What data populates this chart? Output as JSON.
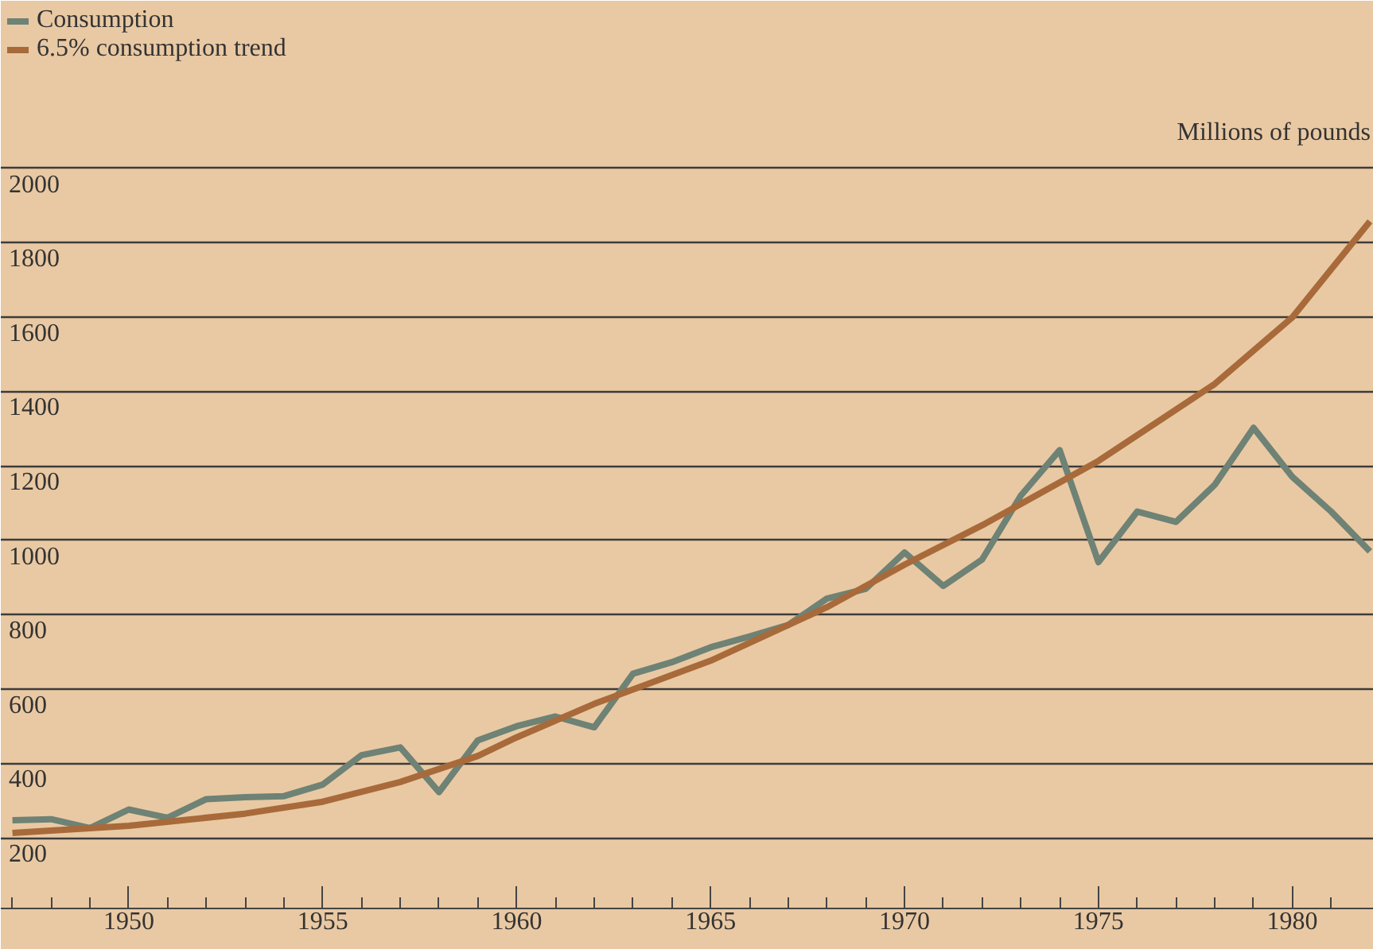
{
  "chart_data": {
    "type": "line",
    "ylabel": "Millions of pounds",
    "xlim": [
      1946.7,
      1982.1
    ],
    "ylim": [
      10,
      2450
    ],
    "xticks": [
      {
        "value": 1947,
        "label": null
      },
      {
        "value": 1948,
        "label": null
      },
      {
        "value": 1949,
        "label": null
      },
      1950,
      {
        "value": 1951,
        "label": null
      },
      {
        "value": 1952,
        "label": null
      },
      {
        "value": 1953,
        "label": null
      },
      {
        "value": 1954,
        "label": null
      },
      1955,
      {
        "value": 1956,
        "label": null
      },
      {
        "value": 1957,
        "label": null
      },
      {
        "value": 1958,
        "label": null
      },
      {
        "value": 1959,
        "label": null
      },
      1960,
      {
        "value": 1961,
        "label": null
      },
      {
        "value": 1962,
        "label": null
      },
      {
        "value": 1963,
        "label": null
      },
      {
        "value": 1964,
        "label": null
      },
      1965,
      {
        "value": 1966,
        "label": null
      },
      {
        "value": 1967,
        "label": null
      },
      {
        "value": 1968,
        "label": null
      },
      {
        "value": 1969,
        "label": null
      },
      1970,
      {
        "value": 1971,
        "label": null
      },
      {
        "value": 1972,
        "label": null
      },
      {
        "value": 1973,
        "label": null
      },
      {
        "value": 1974,
        "label": null
      },
      1975,
      {
        "value": 1976,
        "label": null
      },
      {
        "value": 1977,
        "label": null
      },
      {
        "value": 1978,
        "label": null
      },
      {
        "value": 1979,
        "label": null
      },
      1980,
      {
        "value": 1981,
        "label": null
      }
    ],
    "yticks": [
      200,
      400,
      600,
      800,
      1000,
      1200,
      1400,
      1600,
      1800,
      2000
    ],
    "grid": "y",
    "legend": "top left",
    "line_style": "solid",
    "marker": "none",
    "series": [
      {
        "name": "Consumption",
        "color": "#6e8275",
        "x": [
          1947,
          1948,
          1949,
          1950,
          1951,
          1952,
          1953,
          1954,
          1955,
          1956,
          1957,
          1958,
          1959,
          1960,
          1961,
          1962,
          1963,
          1964,
          1965,
          1966,
          1967,
          1968,
          1969,
          1970,
          1971,
          1972,
          1973,
          1974,
          1975,
          1976,
          1977,
          1978,
          1979,
          1980,
          1981,
          1982
        ],
        "values": [
          247,
          250,
          226,
          276,
          254,
          304,
          309,
          312,
          343,
          422,
          443,
          323,
          462,
          500,
          526,
          497,
          641,
          672,
          712,
          741,
          772,
          843,
          869,
          967,
          877,
          948,
          1120,
          1242,
          941,
          1077,
          1049,
          1149,
          1302,
          1170,
          1077,
          970
        ]
      },
      {
        "name": "6.5% consumption trend",
        "color": "#a86a3a",
        "x": [
          1947,
          1950,
          1953,
          1955,
          1957,
          1959,
          1960,
          1962,
          1965,
          1968,
          1970,
          1972,
          1975,
          1978,
          1980,
          1982
        ],
        "values": [
          213,
          232,
          265,
          297,
          350,
          420,
          470,
          560,
          676,
          820,
          934,
          1040,
          1213,
          1420,
          1599,
          1857
        ]
      }
    ]
  }
}
